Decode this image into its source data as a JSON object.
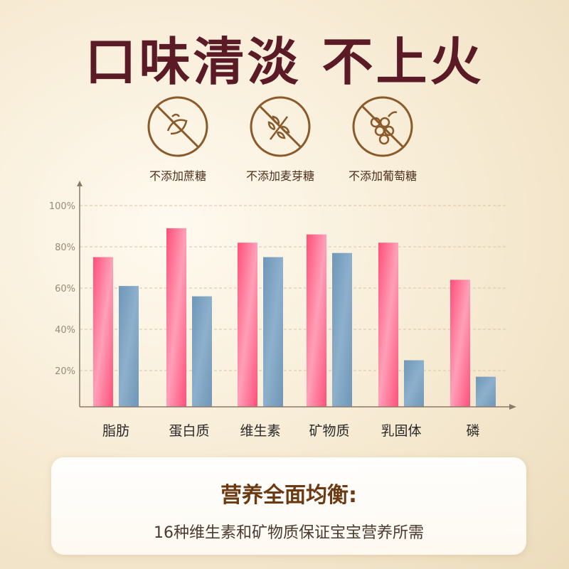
{
  "title": "口味清淡 不上火",
  "badges": [
    {
      "label": "不添加蔗糖",
      "icon": "no-sucrose-icon"
    },
    {
      "label": "不添加麦芽糖",
      "icon": "no-maltose-icon"
    },
    {
      "label": "不添加葡萄糖",
      "icon": "no-glucose-icon"
    }
  ],
  "colors": {
    "title": "#5a1a26",
    "icon": "#8a5a2a",
    "pink": "#ff4f7a",
    "blue": "#6f97b8"
  },
  "chart_data": {
    "type": "bar",
    "categories": [
      "脂肪",
      "蛋白质",
      "维生素",
      "矿物质",
      "乳固体",
      "磷"
    ],
    "series": [
      {
        "values": [
          75,
          89,
          82,
          86,
          82,
          64
        ]
      },
      {
        "values": [
          61,
          56,
          75,
          77,
          25,
          17
        ]
      }
    ],
    "ylim": [
      0,
      100
    ],
    "yticks": [
      "20%",
      "40%",
      "60%",
      "80%",
      "100%"
    ],
    "grid": true
  },
  "card": {
    "heading": "营养全面均衡:",
    "text": "16种维生素和矿物质保证宝宝营养所需"
  }
}
